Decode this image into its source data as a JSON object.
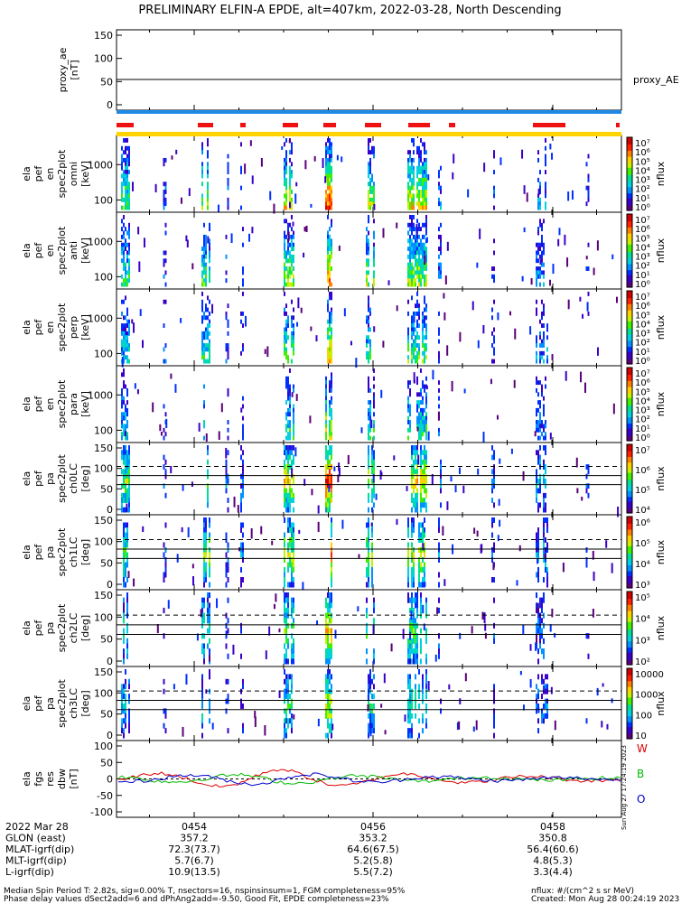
{
  "title": "PRELIMINARY ELFIN-A EPDE, alt=407km, 2022-03-28, North Descending",
  "panels": [
    {
      "kind": "line",
      "ylabel": [
        "proxy_ae",
        "[nT]"
      ],
      "yticks": [
        "150",
        "100",
        "50",
        "0"
      ],
      "series_label": "proxy_AE"
    },
    {
      "kind": "energy",
      "ylabel": [
        "ela",
        "pef",
        "en",
        "spec2plot",
        "omni",
        "[keV]"
      ],
      "yticks": [
        "1000",
        "100"
      ],
      "cbar": [
        "10⁷",
        "10⁶",
        "10⁵",
        "10⁴",
        "10³",
        "10²",
        "10¹",
        "10⁰"
      ],
      "cbar_label": "nflux"
    },
    {
      "kind": "energy",
      "ylabel": [
        "ela",
        "pef",
        "en",
        "spec2plot",
        "anti",
        "[keV]"
      ],
      "yticks": [
        "1000",
        "100"
      ],
      "cbar": [
        "10⁷",
        "10⁶",
        "10⁵",
        "10⁴",
        "10³",
        "10²",
        "10¹",
        "10⁰"
      ],
      "cbar_label": "nflux"
    },
    {
      "kind": "energy",
      "ylabel": [
        "ela",
        "pef",
        "en",
        "spec2plot",
        "perp",
        "[keV]"
      ],
      "yticks": [
        "1000",
        "100"
      ],
      "cbar": [
        "10⁷",
        "10⁶",
        "10⁵",
        "10⁴",
        "10³",
        "10²",
        "10¹",
        "10⁰"
      ],
      "cbar_label": "nflux"
    },
    {
      "kind": "energy",
      "ylabel": [
        "ela",
        "pef",
        "en",
        "spec2plot",
        "para",
        "[keV]"
      ],
      "yticks": [
        "1000",
        "100"
      ],
      "cbar": [
        "10⁷",
        "10⁶",
        "10⁵",
        "10⁴",
        "10³",
        "10²",
        "10¹",
        "10⁰"
      ],
      "cbar_label": "nflux"
    },
    {
      "kind": "pitch",
      "ylabel": [
        "ela",
        "pef",
        "pa",
        "spec2plot",
        "ch0LC",
        "[deg]"
      ],
      "yticks": [
        "150",
        "100",
        "50",
        "0"
      ],
      "cbar": [
        "10⁷",
        "10⁶",
        "10⁵",
        "10⁴"
      ],
      "cbar_label": "nflux"
    },
    {
      "kind": "pitch",
      "ylabel": [
        "ela",
        "pef",
        "pa",
        "spec2plot",
        "ch1LC",
        "[deg]"
      ],
      "yticks": [
        "150",
        "100",
        "50",
        "0"
      ],
      "cbar": [
        "10⁶",
        "10⁵",
        "10⁴",
        "10³"
      ],
      "cbar_label": "nflux"
    },
    {
      "kind": "pitch",
      "ylabel": [
        "ela",
        "pef",
        "pa",
        "spec2plot",
        "ch2LC",
        "[deg]"
      ],
      "yticks": [
        "150",
        "100",
        "50",
        "0"
      ],
      "cbar": [
        "10⁵",
        "10⁴",
        "10³",
        "10²"
      ],
      "cbar_label": "nflux"
    },
    {
      "kind": "pitch",
      "ylabel": [
        "ela",
        "pef",
        "pa",
        "spec2plot",
        "ch3LC",
        "[deg]"
      ],
      "yticks": [
        "150",
        "100",
        "50",
        "0"
      ],
      "cbar": [
        "10000",
        "1000",
        "100",
        "10"
      ],
      "cbar_label": "nflux"
    },
    {
      "kind": "fgs",
      "ylabel": [
        "ela",
        "fgs",
        "res",
        "dbw",
        "[nT]"
      ],
      "yticks": [
        "100",
        "50",
        "0",
        "-50",
        "-100"
      ],
      "comp_labels": [
        "W",
        "B",
        "O"
      ],
      "comp_colors": [
        "#dd0000",
        "#00bb00",
        "#0000cc"
      ],
      "stamp": "Sun Aug 27 17:24:19 2023"
    }
  ],
  "chart_data": {
    "type": "spectrogram",
    "title": "PRELIMINARY ELFIN-A EPDE, alt=407km, 2022-03-28, North Descending",
    "xaxis": {
      "ticks": [
        "0454",
        "0456",
        "0458"
      ],
      "date": "2022 Mar 28"
    },
    "proxy_ae": {
      "ylim": [
        -10,
        160
      ],
      "value": 55
    },
    "pitch_reference_lines_deg": {
      "solid": [
        68,
        90
      ],
      "dashed": 112
    },
    "fgs_ylim": [
      -110,
      110
    ],
    "flux_bursts": [
      {
        "t": "04:53:15",
        "intensity": "moderate"
      },
      {
        "t": "04:54:20",
        "intensity": "strong"
      },
      {
        "t": "04:55:10",
        "intensity": "strong"
      },
      {
        "t": "04:55:40",
        "intensity": "very strong"
      },
      {
        "t": "04:56:15",
        "intensity": "strong"
      },
      {
        "t": "04:56:45",
        "intensity": "strong"
      },
      {
        "t": "04:58:20",
        "intensity": "weak"
      }
    ]
  },
  "bars": {
    "blue": "#1e88e5",
    "red": "#ee1111",
    "yellow": "#ffd400"
  },
  "rows": [
    {
      "label": "2022 Mar 28",
      "values": [
        "0454",
        "0456",
        "0458"
      ]
    },
    {
      "label": "GLON (east)",
      "values": [
        "357.2",
        "353.2",
        "350.8"
      ]
    },
    {
      "label": "MLAT-igrf(dip)",
      "values": [
        "72.3(73.7)",
        "64.6(67.5)",
        "56.4(60.6)"
      ]
    },
    {
      "label": "MLT-igrf(dip)",
      "values": [
        "5.7(6.7)",
        "5.2(5.8)",
        "4.8(5.3)"
      ]
    },
    {
      "label": "L-igrf(dip)",
      "values": [
        "10.9(13.5)",
        "5.5(7.2)",
        "3.3(4.4)"
      ]
    }
  ],
  "footer": {
    "line1": "Median Spin Period T: 2.82s, sig=0.00% T, nsectors=16, nspinsinsum=1, FGM completeness=95%",
    "line2": "Phase delay values dSect2add=6 and dPhAng2add=-9.50, Good Fit, EPDE completeness=23%",
    "units": "nflux: #/(cm^2 s sr MeV)",
    "created": "Created: Mon Aug 28 00:24:19 2023"
  }
}
